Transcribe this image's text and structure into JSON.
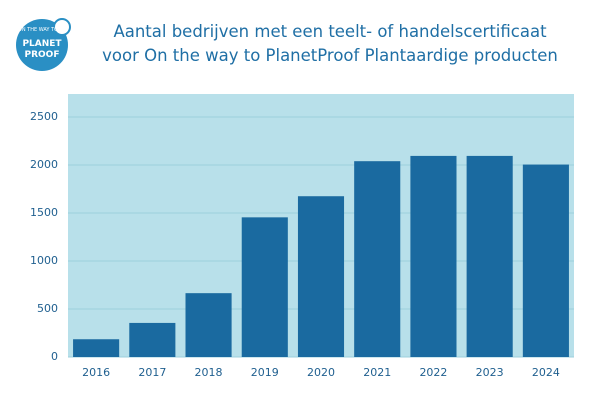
{
  "logo": {
    "top": "ON THE WAY TO",
    "line1": "PLANET",
    "line2": "PROOF"
  },
  "chart_data": {
    "type": "bar",
    "title": "Aantal bedrijven met een teelt- of handelscertificaat voor On the way to PlanetProof Plantaardige producten",
    "categories": [
      "2016",
      "2017",
      "2018",
      "2019",
      "2020",
      "2021",
      "2022",
      "2023",
      "2024"
    ],
    "values": [
      185,
      355,
      665,
      1455,
      1675,
      2040,
      2095,
      2095,
      2005
    ],
    "color": "#1a6aa0",
    "background": "#b8e0ea",
    "ylim": [
      0,
      2740
    ],
    "yticks": [
      0,
      500,
      1000,
      1500,
      2000,
      2500
    ],
    "grid": true
  }
}
